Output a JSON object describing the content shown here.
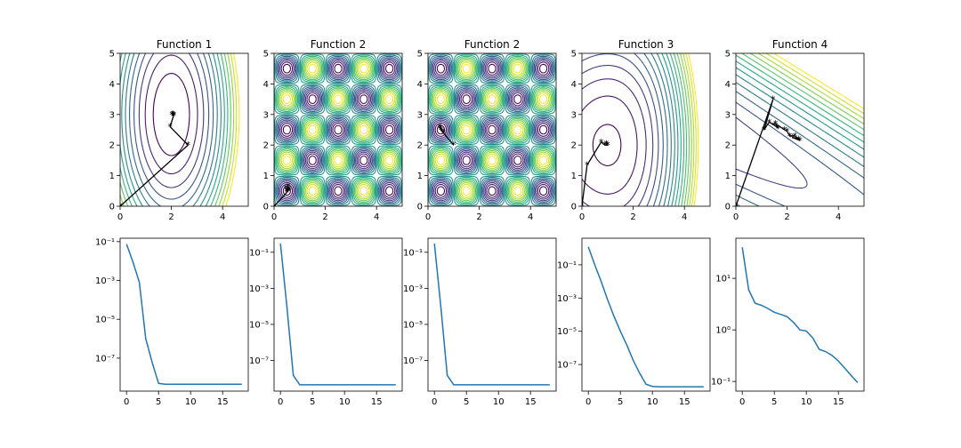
{
  "figure": {
    "background": "#ffffff"
  },
  "colors": {
    "contour_low": "#440154",
    "contour_high": "#fde725",
    "trajectory": "#000000",
    "convergence_line": "#1f77b4"
  },
  "chart_data": [
    {
      "type": "contour",
      "title": "Function 1",
      "xlim": [
        0,
        5
      ],
      "ylim": [
        0,
        5
      ],
      "xticks": [
        "0",
        "2",
        "4"
      ],
      "xtick_values": [
        0,
        2,
        4
      ],
      "yticks": [
        "0",
        "1",
        "2",
        "3",
        "4",
        "5"
      ],
      "ytick_values": [
        0,
        1,
        2,
        3,
        4,
        5
      ],
      "function": "ellipse",
      "center": [
        2,
        3
      ],
      "axis_ratio": [
        1,
        1.9
      ],
      "levels": 13,
      "contour_range": [
        2.0,
        28.0
      ],
      "fill_innermost_white": false,
      "trajectory": {
        "x": [
          0,
          2.65,
          1.95,
          2.08,
          2.02,
          2.1,
          2.05,
          2.08
        ],
        "y": [
          0,
          2.0,
          2.6,
          2.95,
          3.0,
          2.98,
          3.02,
          3.0
        ]
      }
    },
    {
      "type": "contour",
      "title": "Function 2",
      "xlim": [
        0,
        5
      ],
      "ylim": [
        0,
        5
      ],
      "xticks": [
        "0",
        "2",
        "4"
      ],
      "xtick_values": [
        0,
        2,
        4
      ],
      "yticks": [
        "0",
        "1",
        "2",
        "3",
        "4",
        "5"
      ],
      "ytick_values": [
        0,
        1,
        2,
        3,
        4,
        5
      ],
      "function": "egg-crate",
      "levels": 16,
      "contour_range": [
        -0.9,
        0.9
      ],
      "fill_innermost_white": true,
      "trajectory": {
        "x": [
          0,
          0.5,
          0.55,
          0.6,
          0.5,
          0.45,
          0.55
        ],
        "y": [
          0,
          0.45,
          0.65,
          0.55,
          0.5,
          0.6,
          0.5
        ]
      }
    },
    {
      "type": "contour",
      "title": "Function 2",
      "xlim": [
        0,
        5
      ],
      "ylim": [
        0,
        5
      ],
      "xticks": [
        "0",
        "2",
        "4"
      ],
      "xtick_values": [
        0,
        2,
        4
      ],
      "yticks": [
        "0",
        "1",
        "2",
        "3",
        "4",
        "5"
      ],
      "ytick_values": [
        0,
        1,
        2,
        3,
        4,
        5
      ],
      "function": "egg-crate",
      "levels": 16,
      "contour_range": [
        -0.9,
        0.9
      ],
      "fill_innermost_white": true,
      "trajectory": {
        "x": [
          1.0,
          0.6,
          0.45,
          0.5,
          0.55,
          0.48
        ],
        "y": [
          2.0,
          2.4,
          2.6,
          2.5,
          2.45,
          2.55
        ]
      }
    },
    {
      "type": "contour",
      "title": "Function 3",
      "xlim": [
        0,
        5
      ],
      "ylim": [
        0,
        5
      ],
      "xticks": [
        "0",
        "2",
        "4"
      ],
      "xtick_values": [
        0,
        2,
        4
      ],
      "yticks": [
        "0",
        "1",
        "2",
        "3",
        "4",
        "5"
      ],
      "ytick_values": [
        0,
        1,
        2,
        3,
        4,
        5
      ],
      "function": "skewed-bowl",
      "center": [
        1,
        2
      ],
      "levels": 18,
      "contour_range": [
        0.5,
        40.0
      ],
      "fill_innermost_white": false,
      "trajectory": {
        "x": [
          0,
          0.2,
          0.75,
          0.9,
          1.0,
          0.95,
          1.0
        ],
        "y": [
          0,
          1.35,
          2.1,
          2.0,
          2.0,
          2.05,
          2.0
        ]
      }
    },
    {
      "type": "contour",
      "title": "Function 4",
      "xlim": [
        0,
        5
      ],
      "ylim": [
        0,
        5
      ],
      "xticks": [
        "0",
        "2",
        "4"
      ],
      "xtick_values": [
        0,
        2,
        4
      ],
      "yticks": [
        "0",
        "1",
        "2",
        "3",
        "4",
        "5"
      ],
      "ytick_values": [
        0,
        1,
        2,
        3,
        4,
        5
      ],
      "function": "linear-band",
      "levels": 16,
      "contour_range": [
        -4.0,
        15.0
      ],
      "fill_innermost_white": false,
      "trajectory": {
        "x": [
          0,
          1.45,
          1.1,
          1.3,
          1.5,
          1.65,
          1.55,
          1.9,
          2.0,
          2.1,
          2.3,
          2.5,
          2.2,
          2.45
        ],
        "y": [
          0,
          3.5,
          2.5,
          2.75,
          2.65,
          2.55,
          2.7,
          2.5,
          2.45,
          2.3,
          2.3,
          2.15,
          2.25,
          2.2
        ]
      }
    },
    {
      "type": "line",
      "yscale": "log",
      "xlim": [
        -1,
        19
      ],
      "ylim": [
        2e-09,
        0.15
      ],
      "xticks": [
        "0",
        "5",
        "10",
        "15"
      ],
      "xtick_values": [
        0,
        5,
        10,
        15
      ],
      "yticks": [
        "10⁻¹",
        "10⁻³",
        "10⁻⁵",
        "10⁻⁷"
      ],
      "ytick_values": [
        0.1,
        0.001,
        1e-05,
        1e-07
      ],
      "series": [
        {
          "x": [
            0,
            1,
            2,
            3,
            4,
            5,
            6,
            7,
            8,
            9,
            10,
            11,
            12,
            13,
            14,
            15,
            16,
            17,
            18
          ],
          "y": [
            0.075,
            0.009,
            0.0008,
            1e-06,
            6e-08,
            5e-09,
            4.5e-09,
            4.5e-09,
            4.5e-09,
            4.5e-09,
            4.5e-09,
            4.5e-09,
            4.5e-09,
            4.5e-09,
            4.5e-09,
            4.5e-09,
            4.5e-09,
            4.5e-09,
            4.5e-09
          ]
        }
      ]
    },
    {
      "type": "line",
      "yscale": "log",
      "xlim": [
        -1,
        19
      ],
      "ylim": [
        2e-09,
        0.6
      ],
      "xticks": [
        "0",
        "5",
        "10",
        "15"
      ],
      "xtick_values": [
        0,
        5,
        10,
        15
      ],
      "yticks": [
        "10⁻¹",
        "10⁻³",
        "10⁻⁵",
        "10⁻⁷"
      ],
      "ytick_values": [
        0.1,
        0.001,
        1e-05,
        1e-07
      ],
      "series": [
        {
          "x": [
            0,
            1,
            2,
            3,
            4,
            5,
            6,
            7,
            8,
            9,
            10,
            11,
            12,
            13,
            14,
            15,
            16,
            17,
            18
          ],
          "y": [
            0.3,
            0.0001,
            1.5e-08,
            4.5e-09,
            4.5e-09,
            4.5e-09,
            4.5e-09,
            4.5e-09,
            4.5e-09,
            4.5e-09,
            4.5e-09,
            4.5e-09,
            4.5e-09,
            4.5e-09,
            4.5e-09,
            4.5e-09,
            4.5e-09,
            4.5e-09,
            4.5e-09
          ]
        }
      ]
    },
    {
      "type": "line",
      "yscale": "log",
      "xlim": [
        -1,
        19
      ],
      "ylim": [
        2e-09,
        0.6
      ],
      "xticks": [
        "0",
        "5",
        "10",
        "15"
      ],
      "xtick_values": [
        0,
        5,
        10,
        15
      ],
      "yticks": [
        "10⁻¹",
        "10⁻³",
        "10⁻⁵",
        "10⁻⁷"
      ],
      "ytick_values": [
        0.1,
        0.001,
        1e-05,
        1e-07
      ],
      "series": [
        {
          "x": [
            0,
            1,
            2,
            3,
            4,
            5,
            6,
            7,
            8,
            9,
            10,
            11,
            12,
            13,
            14,
            15,
            16,
            17,
            18
          ],
          "y": [
            0.3,
            0.0001,
            1.5e-08,
            4.5e-09,
            4.5e-09,
            4.5e-09,
            4.5e-09,
            4.5e-09,
            4.5e-09,
            4.5e-09,
            4.5e-09,
            4.5e-09,
            4.5e-09,
            4.5e-09,
            4.5e-09,
            4.5e-09,
            4.5e-09,
            4.5e-09,
            4.5e-09
          ]
        }
      ]
    },
    {
      "type": "line",
      "yscale": "log",
      "xlim": [
        -1,
        19
      ],
      "ylim": [
        2.5e-09,
        4.0
      ],
      "xticks": [
        "0",
        "5",
        "10",
        "15"
      ],
      "xtick_values": [
        0,
        5,
        10,
        15
      ],
      "yticks": [
        "10⁻¹",
        "10⁻³",
        "10⁻⁵",
        "10⁻⁷"
      ],
      "ytick_values": [
        0.1,
        0.001,
        1e-05,
        1e-07
      ],
      "series": [
        {
          "x": [
            0,
            1,
            2,
            3,
            4,
            5,
            6,
            7,
            8,
            9,
            10,
            11,
            12,
            13,
            14,
            15,
            16,
            17,
            18
          ],
          "y": [
            1.2,
            0.1,
            0.01,
            0.0008,
            8e-05,
            1e-05,
            1.5e-06,
            1.8e-07,
            3e-08,
            6.5e-09,
            4.8e-09,
            4.6e-09,
            4.6e-09,
            4.6e-09,
            4.6e-09,
            4.6e-09,
            4.6e-09,
            4.6e-09,
            4.6e-09
          ]
        }
      ]
    },
    {
      "type": "line",
      "yscale": "log",
      "xlim": [
        -1,
        19
      ],
      "ylim": [
        0.065,
        60
      ],
      "xticks": [
        "0",
        "5",
        "10",
        "15"
      ],
      "xtick_values": [
        0,
        5,
        10,
        15
      ],
      "yticks": [
        "10¹",
        "10⁰",
        "10⁻¹"
      ],
      "ytick_values": [
        10,
        1,
        0.1
      ],
      "series": [
        {
          "x": [
            0,
            1,
            2,
            3,
            4,
            5,
            6,
            7,
            8,
            9,
            10,
            11,
            12,
            13,
            14,
            15,
            16,
            17,
            18
          ],
          "y": [
            40,
            6,
            3.3,
            3.0,
            2.6,
            2.2,
            2.0,
            1.8,
            1.4,
            1.0,
            0.95,
            0.7,
            0.42,
            0.38,
            0.32,
            0.25,
            0.18,
            0.13,
            0.095
          ]
        }
      ]
    }
  ]
}
